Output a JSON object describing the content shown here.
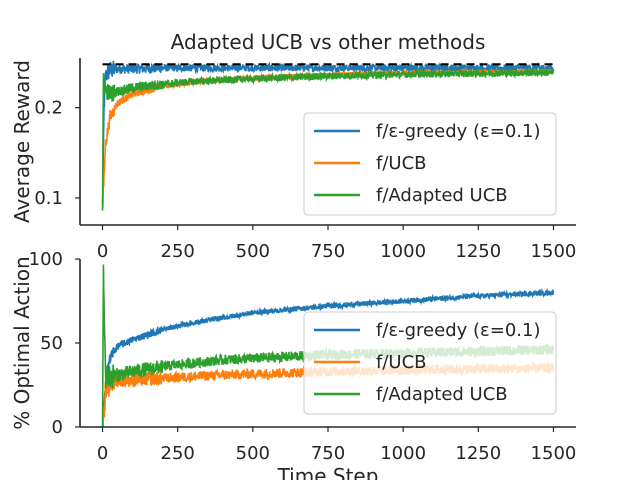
{
  "chart_data": [
    {
      "type": "line",
      "title": "Adapted UCB vs other methods",
      "xlabel": "",
      "ylabel": "Average Reward",
      "xlim": [
        -75,
        1575
      ],
      "ylim": [
        0.07,
        0.255
      ],
      "xticks": [
        "0",
        "250",
        "500",
        "750",
        "1000",
        "1250",
        "1500"
      ],
      "yticks": [
        "0.1",
        "0.2"
      ],
      "ytick_values": [
        0.1,
        0.2
      ],
      "grid": false,
      "legend_position": "lower-right",
      "reference_line": {
        "value": 0.248,
        "style": "dashed",
        "color": "#000000"
      },
      "series": [
        {
          "name": "f/ε-greedy (ε=0.1)",
          "color": "#1f77b4",
          "x": [
            0,
            5,
            10,
            25,
            50,
            100,
            200,
            400,
            750,
            1000,
            1500
          ],
          "y": [
            0.09,
            0.2,
            0.235,
            0.242,
            0.243,
            0.243,
            0.244,
            0.244,
            0.244,
            0.244,
            0.244
          ],
          "noise": 0.004
        },
        {
          "name": "f/UCB",
          "color": "#ff7f0e",
          "x": [
            0,
            10,
            25,
            50,
            100,
            200,
            300,
            400,
            500,
            750,
            1000,
            1500
          ],
          "y": [
            0.085,
            0.16,
            0.19,
            0.205,
            0.215,
            0.224,
            0.228,
            0.231,
            0.233,
            0.236,
            0.238,
            0.24
          ],
          "noise": 0.003
        },
        {
          "name": "f/Adapted UCB",
          "color": "#2ca02c",
          "x": [
            0,
            3,
            10,
            25,
            50,
            100,
            200,
            300,
            500,
            750,
            1000,
            1500
          ],
          "y": [
            0.09,
            0.23,
            0.22,
            0.215,
            0.218,
            0.222,
            0.226,
            0.229,
            0.232,
            0.235,
            0.237,
            0.239
          ],
          "noise": 0.004
        }
      ]
    },
    {
      "type": "line",
      "title": "",
      "xlabel": "Time Step",
      "ylabel": "% Optimal Action",
      "xlim": [
        -75,
        1575
      ],
      "ylim": [
        0,
        100
      ],
      "xticks": [
        "0",
        "250",
        "500",
        "750",
        "1000",
        "1250",
        "1500"
      ],
      "yticks": [
        "0",
        "50",
        "100"
      ],
      "ytick_values": [
        0,
        50,
        100
      ],
      "grid": false,
      "legend_position": "lower-right",
      "series": [
        {
          "name": "f/ε-greedy (ε=0.1)",
          "color": "#1f77b4",
          "x": [
            0,
            15,
            30,
            50,
            100,
            200,
            300,
            500,
            750,
            1000,
            1250,
            1500
          ],
          "y": [
            0,
            35,
            43,
            48,
            52,
            58,
            62,
            68,
            72,
            75,
            78,
            80
          ],
          "noise": 1.5
        },
        {
          "name": "f/UCB",
          "color": "#ff7f0e",
          "x": [
            0,
            10,
            25,
            50,
            100,
            200,
            400,
            750,
            1000,
            1500
          ],
          "y": [
            0,
            22,
            26,
            28,
            28,
            29,
            31,
            33,
            34,
            35
          ],
          "noise": 3
        },
        {
          "name": "f/Adapted UCB",
          "color": "#2ca02c",
          "x": [
            0,
            3,
            10,
            25,
            50,
            100,
            200,
            400,
            750,
            1000,
            1500
          ],
          "y": [
            0,
            90,
            30,
            30,
            31,
            33,
            36,
            40,
            43,
            44,
            46
          ],
          "noise": 3
        }
      ]
    }
  ]
}
